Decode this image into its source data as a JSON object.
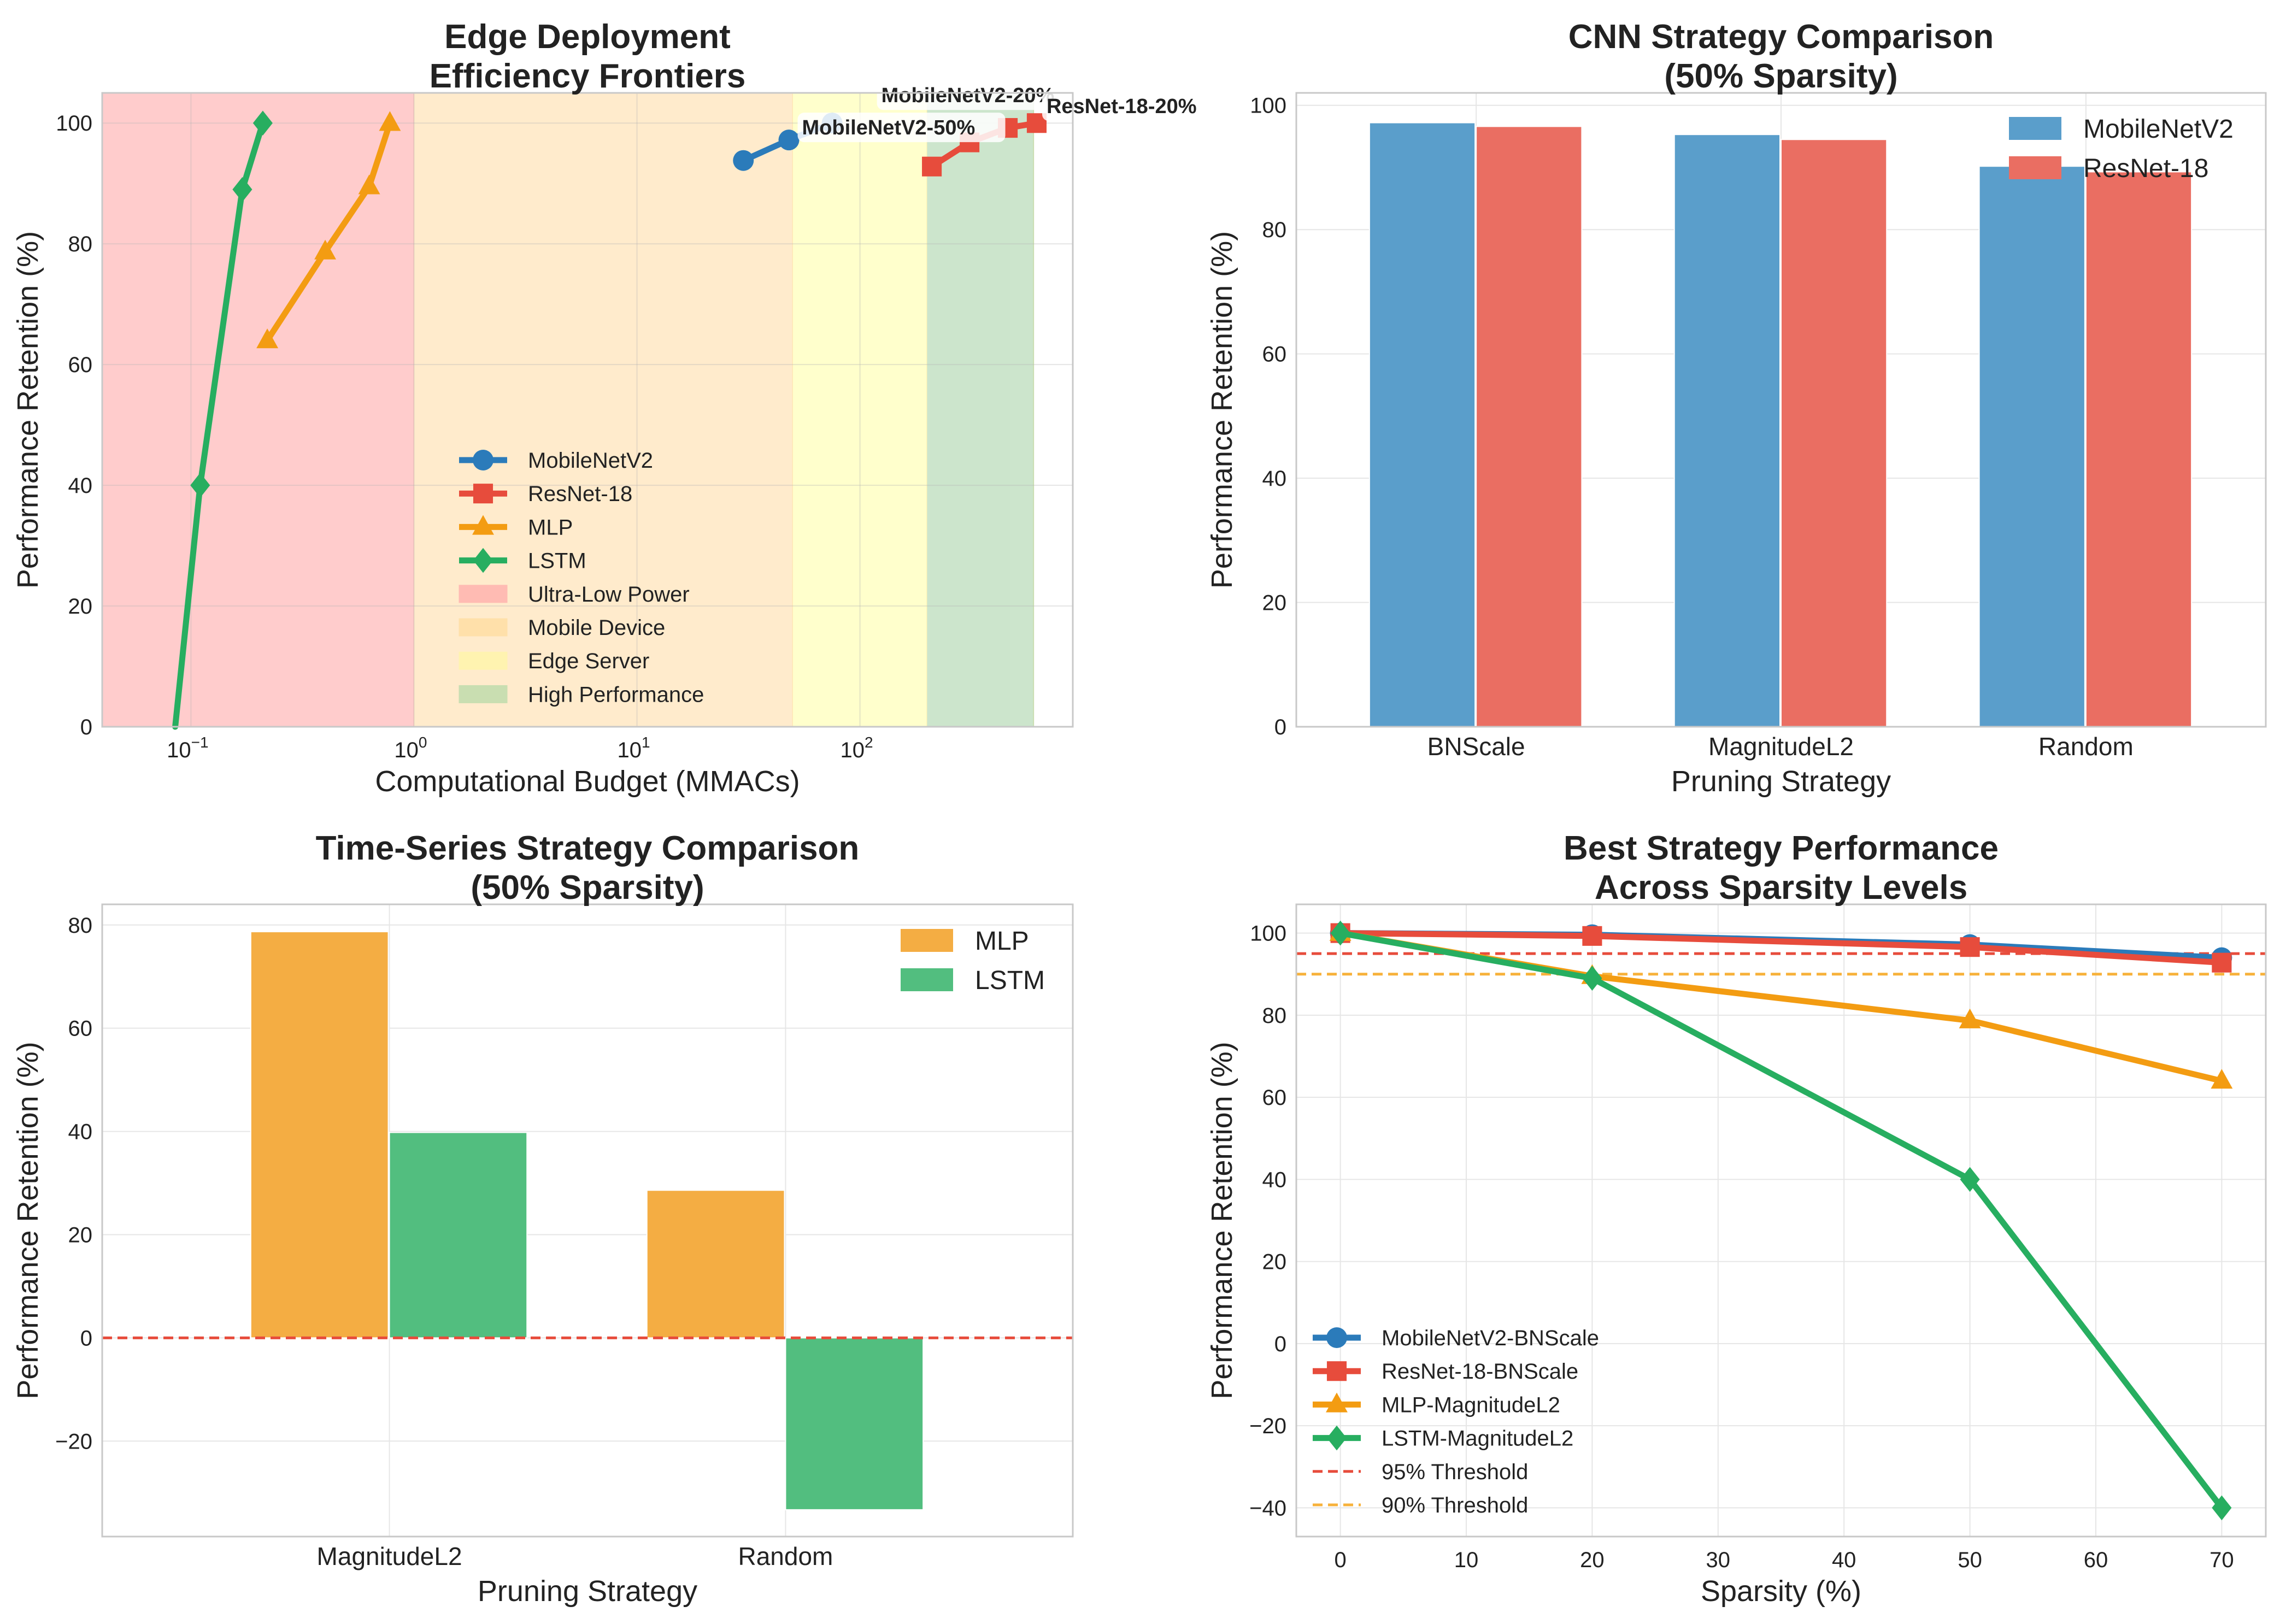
{
  "colors": {
    "mobilenet": "#2b7bba",
    "resnet": "#e74c3c",
    "mlp": "#f39c12",
    "lstm": "#27ae60",
    "bar_mobilenet": "#5a9ecb",
    "bar_resnet": "#ea6e62",
    "bar_mlp": "#f4ad43",
    "bar_lstm": "#52be7f",
    "zone_ultra": "#ffcccc",
    "zone_mobile": "#ffebcc",
    "zone_edge": "#ffffcc",
    "zone_high": "#cce5cc",
    "threshold95": "#e74c3c",
    "threshold90": "#f7b23b",
    "grid": "#e6e6e6",
    "spine": "#c8c8c8"
  },
  "chart_data": [
    {
      "id": "frontiers",
      "type": "line",
      "title": [
        "Edge Deployment",
        "Efficiency Frontiers"
      ],
      "xlabel": "Computational Budget (MMACs)",
      "ylabel": "Performance Retention (%)",
      "xscale": "log",
      "xlim": [
        0.04,
        900
      ],
      "ylim": [
        0,
        105
      ],
      "xticks": [
        {
          "v": 0.1,
          "base": "10",
          "exp": "−1"
        },
        {
          "v": 1,
          "base": "10",
          "exp": "0"
        },
        {
          "v": 10,
          "base": "10",
          "exp": "1"
        },
        {
          "v": 100,
          "base": "10",
          "exp": "2"
        }
      ],
      "yticks": [
        0,
        20,
        40,
        60,
        80,
        100
      ],
      "zones": [
        {
          "name": "Ultra-Low Power",
          "from": 0.04,
          "to": 1,
          "color": "#ffcccc",
          "legend_color": "#ffbbb3"
        },
        {
          "name": "Mobile Device",
          "from": 1,
          "to": 50,
          "color": "#ffebcc",
          "legend_color": "#ffe0aa"
        },
        {
          "name": "Edge Server",
          "from": 50,
          "to": 200,
          "color": "#ffffcc",
          "legend_color": "#fff3b0"
        },
        {
          "name": "High Performance",
          "from": 200,
          "to": 600,
          "color": "#cce5cc",
          "legend_color": "#c9deb1"
        }
      ],
      "series": [
        {
          "name": "MobileNetV2",
          "color": "#2b7bba",
          "marker": "circle",
          "points": [
            [
              30,
              93.8
            ],
            [
              48,
              97.2
            ],
            [
              75,
              100
            ]
          ]
        },
        {
          "name": "ResNet-18",
          "color": "#e74c3c",
          "marker": "square",
          "points": [
            [
              210,
              92.8
            ],
            [
              310,
              96.8
            ],
            [
              460,
              99.2
            ],
            [
              620,
              100
            ]
          ]
        },
        {
          "name": "MLP",
          "color": "#f39c12",
          "marker": "triangle",
          "points": [
            [
              0.22,
              64
            ],
            [
              0.4,
              78.7
            ],
            [
              0.63,
              89.5
            ],
            [
              0.78,
              100
            ]
          ]
        },
        {
          "name": "LSTM",
          "color": "#27ae60",
          "marker": "diamond",
          "points": [
            [
              0.085,
              0
            ],
            [
              0.11,
              40
            ],
            [
              0.17,
              89
            ],
            [
              0.21,
              100
            ]
          ]
        }
      ],
      "annotations": [
        {
          "text": "MobileNetV2-50%",
          "x": 48,
          "y": 97.2
        },
        {
          "text": "MobileNetV2-20%",
          "x": 75,
          "y": 100
        },
        {
          "text": "ResNet-18-20%",
          "x": 620,
          "y": 100
        }
      ],
      "legend_position": "lower-center"
    },
    {
      "id": "cnn",
      "type": "bar",
      "title": [
        "CNN Strategy Comparison",
        "(50% Sparsity)"
      ],
      "xlabel": "Pruning Strategy",
      "ylabel": "Performance Retention (%)",
      "categories": [
        "BNScale",
        "MagnitudeL2",
        "Random"
      ],
      "ylim": [
        0,
        102
      ],
      "yticks": [
        0,
        20,
        40,
        60,
        80,
        100
      ],
      "series": [
        {
          "name": "MobileNetV2",
          "color": "#5a9ecb",
          "values": [
            97.2,
            95.3,
            90.2
          ]
        },
        {
          "name": "ResNet-18",
          "color": "#ea6e62",
          "values": [
            96.6,
            94.5,
            89.3
          ]
        }
      ],
      "legend_position": "top-right"
    },
    {
      "id": "timeseries",
      "type": "bar",
      "title": [
        "Time-Series Strategy Comparison",
        "(50% Sparsity)"
      ],
      "xlabel": "Pruning Strategy",
      "ylabel": "Performance Retention (%)",
      "categories": [
        "MagnitudeL2",
        "Random"
      ],
      "ylim": [
        -38.5,
        84
      ],
      "yticks": [
        -20,
        0,
        20,
        40,
        60,
        80
      ],
      "zero_line": 0,
      "series": [
        {
          "name": "MLP",
          "color": "#f4ad43",
          "values": [
            78.7,
            28.6
          ]
        },
        {
          "name": "LSTM",
          "color": "#52be7f",
          "values": [
            39.8,
            -33.3
          ]
        }
      ],
      "legend_position": "top-right"
    },
    {
      "id": "best",
      "type": "line",
      "title": [
        "Best Strategy Performance",
        "Across Sparsity Levels"
      ],
      "xlabel": "Sparsity (%)",
      "ylabel": "Performance Retention (%)",
      "xlim": [
        -3.5,
        73.5
      ],
      "ylim": [
        -47,
        107
      ],
      "xticks": [
        0,
        10,
        20,
        30,
        40,
        50,
        60,
        70
      ],
      "yticks": [
        -40,
        -20,
        0,
        20,
        40,
        60,
        80,
        100
      ],
      "x": [
        0,
        20,
        50,
        70
      ],
      "series": [
        {
          "name": "MobileNetV2-BNScale",
          "color": "#2b7bba",
          "marker": "circle",
          "values": [
            100,
            99.6,
            97.2,
            94
          ]
        },
        {
          "name": "ResNet-18-BNScale",
          "color": "#e74c3c",
          "marker": "square",
          "values": [
            100,
            99.3,
            96.6,
            92.8
          ]
        },
        {
          "name": "MLP-MagnitudeL2",
          "color": "#f39c12",
          "marker": "triangle",
          "values": [
            100,
            89.5,
            78.7,
            64
          ]
        },
        {
          "name": "LSTM-MagnitudeL2",
          "color": "#27ae60",
          "marker": "diamond",
          "values": [
            100,
            89,
            40,
            -40
          ]
        }
      ],
      "thresholds": [
        {
          "name": "95% Threshold",
          "value": 95,
          "color": "#e74c3c"
        },
        {
          "name": "90% Threshold",
          "value": 90,
          "color": "#f7b23b"
        }
      ],
      "legend_position": "lower-left"
    }
  ]
}
